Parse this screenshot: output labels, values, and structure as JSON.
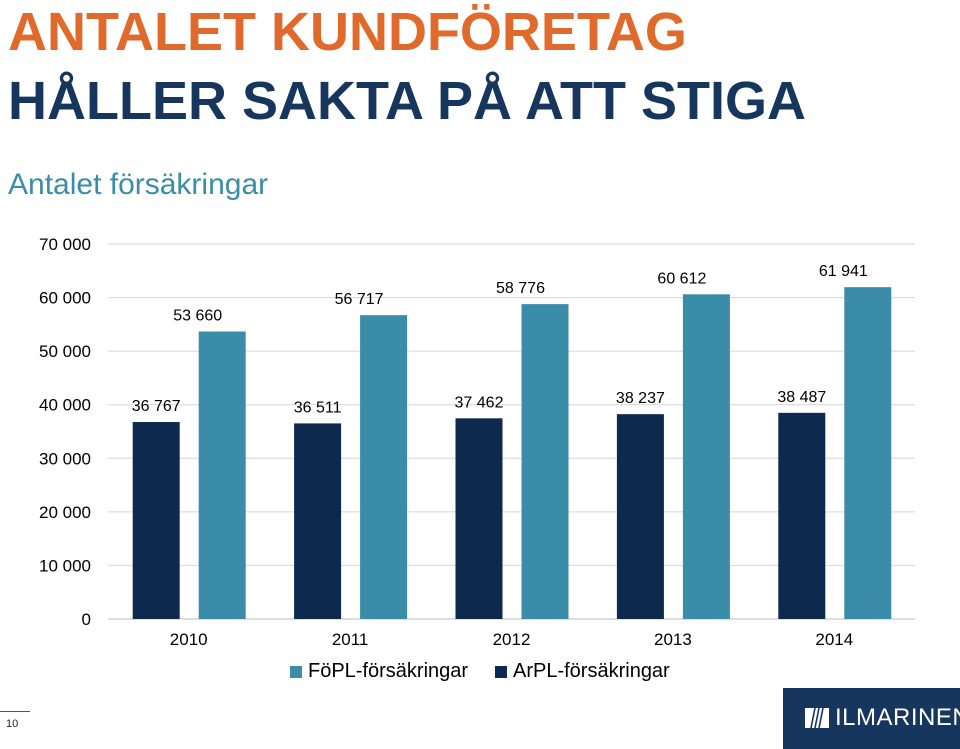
{
  "header": {
    "title_line1": "ANTALET KUNDFÖRETAG",
    "title_line2": "HÅLLER SAKTA PÅ ATT STIGA",
    "subtitle": "Antalet försäkringar"
  },
  "chart_data": {
    "type": "bar",
    "categories": [
      "2010",
      "2011",
      "2012",
      "2013",
      "2014"
    ],
    "series": [
      {
        "name": "ArPL-försäkringar",
        "color": "#0d2a4e",
        "values": [
          36767,
          36511,
          37462,
          38237,
          38487
        ],
        "labels": [
          "36 767",
          "36 511",
          "37 462",
          "38 237",
          "38 487"
        ]
      },
      {
        "name": "FöPL-försäkringar",
        "color": "#3a8ca9",
        "values": [
          53660,
          56717,
          58776,
          60612,
          61941
        ],
        "labels": [
          "53 660",
          "56 717",
          "58 776",
          "60 612",
          "61 941"
        ]
      }
    ],
    "ylim": [
      0,
      70000
    ],
    "yticks": [
      0,
      10000,
      20000,
      30000,
      40000,
      50000,
      60000,
      70000
    ],
    "ytick_labels": [
      "0",
      "10 000",
      "20 000",
      "30 000",
      "40 000",
      "50 000",
      "60 000",
      "70 000"
    ],
    "grid": true,
    "legend": "bottom"
  },
  "legend": {
    "items": [
      {
        "label": "FöPL-försäkringar",
        "color": "#3a8ca9"
      },
      {
        "label": "ArPL-försäkringar",
        "color": "#0d2a4e"
      }
    ]
  },
  "footer": {
    "page_number": "10",
    "logo_text": "ILMARINEN"
  }
}
